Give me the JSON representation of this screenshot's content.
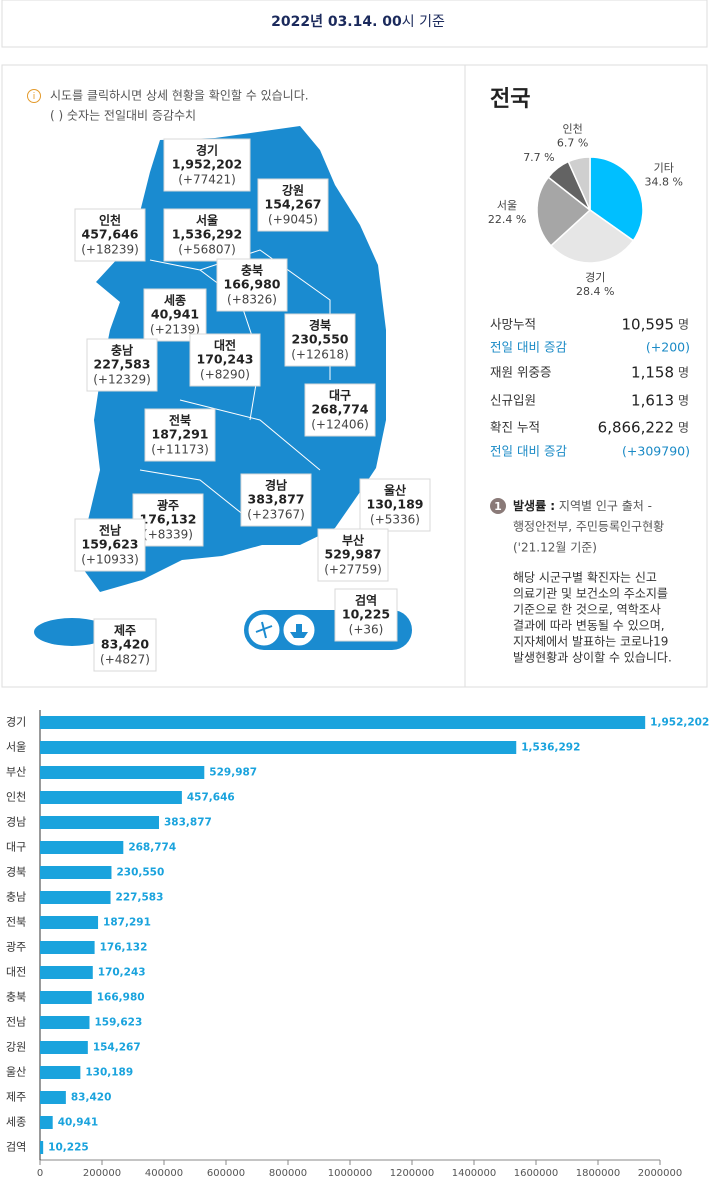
{
  "header": {
    "date": "2022년 03.14. 00",
    "suffix": "시 기준"
  },
  "notice": {
    "icon": "i",
    "lines": [
      "시도를 클릭하시면 상세 현황을 확인할 수 있습니다.",
      "( ) 숫자는 전일대비 증감수치"
    ]
  },
  "map": {
    "regions": [
      {
        "name": "경기",
        "total": "1,952,202",
        "change": "(+77421)"
      },
      {
        "name": "강원",
        "total": "154,267",
        "change": "(+9045)"
      },
      {
        "name": "인천",
        "total": "457,646",
        "change": "(+18239)"
      },
      {
        "name": "서울",
        "total": "1,536,292",
        "change": "(+56807)"
      },
      {
        "name": "충북",
        "total": "166,980",
        "change": "(+8326)"
      },
      {
        "name": "세종",
        "total": "40,941",
        "change": "(+2139)"
      },
      {
        "name": "충남",
        "total": "227,583",
        "change": "(+12329)"
      },
      {
        "name": "대전",
        "total": "170,243",
        "change": "(+8290)"
      },
      {
        "name": "경북",
        "total": "230,550",
        "change": "(+12618)"
      },
      {
        "name": "대구",
        "total": "268,774",
        "change": "(+12406)"
      },
      {
        "name": "전북",
        "total": "187,291",
        "change": "(+11173)"
      },
      {
        "name": "광주",
        "total": "176,132",
        "change": "(+8339)"
      },
      {
        "name": "경남",
        "total": "383,877",
        "change": "(+23767)"
      },
      {
        "name": "울산",
        "total": "130,189",
        "change": "(+5336)"
      },
      {
        "name": "전남",
        "total": "159,623",
        "change": "(+10933)"
      },
      {
        "name": "부산",
        "total": "529,987",
        "change": "(+27759)"
      },
      {
        "name": "검역",
        "total": "10,225",
        "change": "(+36)"
      },
      {
        "name": "제주",
        "total": "83,420",
        "change": "(+4827)"
      }
    ]
  },
  "summary": {
    "title": "전국",
    "rows": [
      {
        "label": "사망누적",
        "value": "10,595",
        "unit": "명"
      },
      {
        "label": "전일 대비 증감",
        "value": "(+200)",
        "color": "#1a8ac6"
      },
      {
        "label": "재원 위중증",
        "value": "1,158",
        "unit": "명"
      },
      {
        "label": "신규입원",
        "value": "1,613",
        "unit": "명"
      },
      {
        "label": "확진 누적",
        "value": "6,866,222",
        "unit": "명"
      },
      {
        "label": "전일 대비 증감",
        "value": "(+309790)",
        "color": "#1a8ac6"
      }
    ]
  },
  "note": {
    "number": "1",
    "term": "발생률 :",
    "lines": [
      " 지역별 인구 출처 -",
      "행정안전부, 주민등록인구현황",
      "('21.12월 기준)"
    ],
    "paragraph": [
      "해당 시군구별 확진자는 신고",
      "의료기관 및 보건소의 주소지를",
      "기준으로 한 것으로, 역학조사",
      "결과에 따라 변동될 수 있으며,",
      "지자체에서 발표하는 코로나19",
      "발생현황과 상이할 수 있습니다."
    ]
  },
  "chart_data": [
    {
      "type": "pie",
      "categories": [
        "기타",
        "경기",
        "서울",
        null,
        "인천"
      ],
      "values": [
        34.8,
        28.4,
        22.4,
        7.7,
        6.7
      ],
      "value_labels": [
        "34.8 %",
        "28.4 %",
        "22.4 %",
        "7.7 %",
        "6.7 %"
      ],
      "colors": [
        "#00bfff",
        "#e6e6e6",
        "#a6a6a6",
        "#636363",
        "#cfcfcf"
      ]
    },
    {
      "type": "bar",
      "orientation": "horizontal",
      "color": "#1aa3dd",
      "categories": [
        "경기",
        "서울",
        "부산",
        "인천",
        "경남",
        "대구",
        "경북",
        "충남",
        "전북",
        "광주",
        "대전",
        "충북",
        "전남",
        "강원",
        "울산",
        "제주",
        "세종",
        "검역"
      ],
      "values": [
        1952202,
        1536292,
        529987,
        457646,
        383877,
        268774,
        230550,
        227583,
        187291,
        176132,
        170243,
        166980,
        159623,
        154267,
        130189,
        83420,
        40941,
        10225
      ],
      "value_labels": [
        "1,952,202",
        "1,536,292",
        "529,987",
        "457,646",
        "383,877",
        "268,774",
        "230,550",
        "227,583",
        "187,291",
        "176,132",
        "170,243",
        "166,980",
        "159,623",
        "154,267",
        "130,189",
        "83,420",
        "40,941",
        "10,225"
      ],
      "xlim": [
        0,
        2000000
      ],
      "xticks": [
        0,
        200000,
        400000,
        600000,
        800000,
        1000000,
        1200000,
        1400000,
        1600000,
        1800000,
        2000000
      ]
    }
  ]
}
